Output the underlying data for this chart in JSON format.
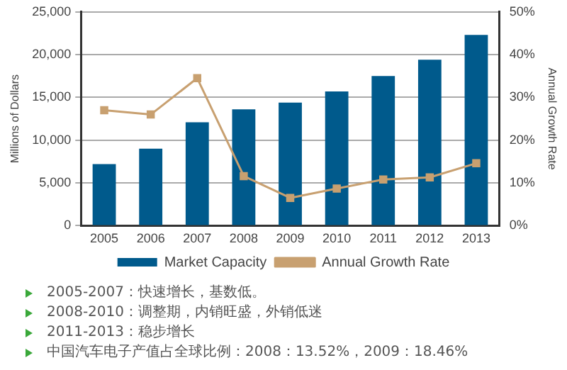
{
  "chart_data": {
    "type": "bar",
    "categories": [
      "2005",
      "2006",
      "2007",
      "2008",
      "2009",
      "2010",
      "2011",
      "2012",
      "2013"
    ],
    "series": [
      {
        "name": "Market Capacity",
        "color": "#005a8c",
        "values": [
          7200,
          9000,
          12100,
          13600,
          14400,
          15700,
          17500,
          19400,
          22300
        ]
      },
      {
        "name": "Annual Growth Rate",
        "type": "line",
        "axis": "y2",
        "color": "#c8a070",
        "values": [
          27,
          26,
          34.5,
          11.6,
          6.5,
          8.7,
          10.8,
          11.3,
          14.6
        ]
      }
    ],
    "ylabel": "Millions of Dollars",
    "y2label": "Annual Growth Rate",
    "ylim": [
      0,
      25000
    ],
    "yticks": [
      {
        "value": 0,
        "label": "0"
      },
      {
        "value": 5000,
        "label": "5,000"
      },
      {
        "value": 10000,
        "label": "10,000"
      },
      {
        "value": 15000,
        "label": "15,000"
      },
      {
        "value": 20000,
        "label": "20,000"
      },
      {
        "value": 25000,
        "label": "25,000"
      }
    ],
    "y2lim": [
      0,
      50
    ],
    "y2ticks": [
      {
        "value": 0,
        "label": "0%"
      },
      {
        "value": 10,
        "label": "10%"
      },
      {
        "value": 20,
        "label": "20%"
      },
      {
        "value": 30,
        "label": "30%"
      },
      {
        "value": 40,
        "label": "40%"
      },
      {
        "value": 50,
        "label": "50%"
      }
    ],
    "grid": "y",
    "legend": "bottom",
    "marker": "square",
    "line_style": "solid",
    "annotations": [
      "2005-2007：快速增长，基数低。",
      "2008-2010：调整期，内销旺盛，外销低迷",
      "2011-2013：稳步增长",
      "中国汽车电子产值占全球比例：2008：13.52%，2009：18.46%"
    ]
  }
}
